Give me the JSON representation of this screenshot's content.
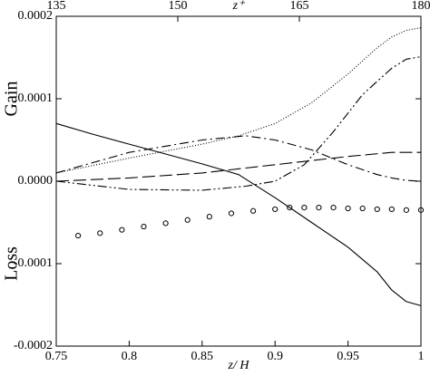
{
  "chart_data": {
    "type": "line",
    "xlabel": "z/ H",
    "x2label": "z⁺",
    "ylabel_top": "Gain",
    "ylabel_bottom": "Loss",
    "xlim": [
      0.75,
      1
    ],
    "xticks": [
      0.75,
      0.8,
      0.85,
      0.9,
      0.95,
      1
    ],
    "x2lim": [
      135,
      180
    ],
    "x2ticks": [
      135,
      150,
      165,
      180
    ],
    "ylim": [
      -0.0002,
      0.0002
    ],
    "yticks": [
      {
        "value": -0.0002,
        "label": "-0.0002"
      },
      {
        "value": -0.0001,
        "label": "-0.0001"
      },
      {
        "value": 0,
        "label": "0.0000"
      },
      {
        "value": 0.0001,
        "label": "0.0001"
      },
      {
        "value": 0.0002,
        "label": "0.0002"
      }
    ],
    "series": [
      {
        "color": "#000",
        "dash": "none",
        "style": "line",
        "x": [
          0.75,
          0.775,
          0.8,
          0.825,
          0.85,
          0.875,
          0.9,
          0.925,
          0.95,
          0.97,
          0.98,
          0.99,
          1
        ],
        "values": [
          7e-05,
          5.7e-05,
          4.5e-05,
          3.3e-05,
          2.1e-05,
          8e-06,
          -2e-05,
          -5e-05,
          -8e-05,
          -0.00011,
          -0.000132,
          -0.000146,
          -0.000151
        ]
      },
      {
        "color": "#000",
        "dash": "1 2",
        "style": "line",
        "x": [
          0.75,
          0.8,
          0.85,
          0.875,
          0.9,
          0.925,
          0.95,
          0.97,
          0.98,
          0.99,
          1
        ],
        "values": [
          1e-05,
          2.8e-05,
          4.5e-05,
          5.5e-05,
          7e-05,
          9.5e-05,
          0.00013,
          0.000162,
          0.000175,
          0.000183,
          0.000186
        ]
      },
      {
        "color": "#000",
        "dash": "10 4 2 4",
        "style": "line",
        "x": [
          0.75,
          0.8,
          0.85,
          0.88,
          0.9,
          0.925,
          0.95,
          0.97,
          0.98,
          0.99,
          1
        ],
        "values": [
          1e-05,
          3.5e-05,
          5e-05,
          5.5e-05,
          5e-05,
          3.8e-05,
          2e-05,
          8e-06,
          4e-06,
          1e-06,
          0
        ]
      },
      {
        "color": "#000",
        "dash": "14 5",
        "style": "line",
        "x": [
          0.75,
          0.8,
          0.85,
          0.9,
          0.95,
          0.98,
          1
        ],
        "values": [
          0,
          4e-06,
          1e-05,
          2e-05,
          3e-05,
          3.5e-05,
          3.5e-05
        ]
      },
      {
        "color": "#000",
        "dash": "10 3 2 3 2 3",
        "style": "line",
        "x": [
          0.75,
          0.8,
          0.85,
          0.88,
          0.9,
          0.92,
          0.94,
          0.96,
          0.98,
          0.99,
          1
        ],
        "values": [
          0,
          -1e-05,
          -1.1e-05,
          -6e-06,
          0,
          2e-05,
          6e-05,
          0.000105,
          0.000137,
          0.000148,
          0.000151
        ]
      },
      {
        "color": "#000",
        "style": "markers",
        "x": [
          0.765,
          0.78,
          0.795,
          0.81,
          0.825,
          0.84,
          0.855,
          0.87,
          0.885,
          0.9,
          0.91,
          0.92,
          0.93,
          0.94,
          0.95,
          0.96,
          0.97,
          0.98,
          0.99,
          1
        ],
        "values": [
          -6.6e-05,
          -6.3e-05,
          -5.9e-05,
          -5.5e-05,
          -5.1e-05,
          -4.7e-05,
          -4.3e-05,
          -3.9e-05,
          -3.6e-05,
          -3.4e-05,
          -3.2e-05,
          -3.2e-05,
          -3.2e-05,
          -3.2e-05,
          -3.3e-05,
          -3.3e-05,
          -3.4e-05,
          -3.4e-05,
          -3.5e-05,
          -3.5e-05
        ]
      }
    ]
  }
}
